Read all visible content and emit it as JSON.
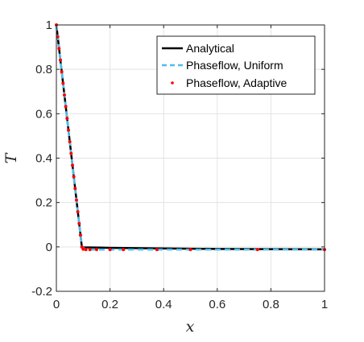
{
  "chart_data": {
    "type": "line",
    "xlabel": "x",
    "ylabel": "T",
    "xlim": [
      0,
      1
    ],
    "ylim": [
      -0.2,
      1
    ],
    "xticks": [
      0,
      0.2,
      0.4,
      0.6,
      0.8,
      1
    ],
    "xtick_labels": [
      "0",
      "0.2",
      "0.4",
      "0.6",
      "0.8",
      "1"
    ],
    "yticks": [
      -0.2,
      0,
      0.2,
      0.4,
      0.6,
      0.8,
      1
    ],
    "ytick_labels": [
      "-0.2",
      "0",
      "0.2",
      "0.4",
      "0.6",
      "0.8",
      "1"
    ],
    "grid": true,
    "legend_position": "top-right",
    "series": [
      {
        "name": "Analytical",
        "style": "solid",
        "color": "#000000",
        "x": [
          0,
          0.095,
          0.1,
          0.2,
          0.4,
          0.6,
          0.8,
          1.0
        ],
        "y": [
          1.0,
          0.0,
          -0.002,
          -0.004,
          -0.007,
          -0.009,
          -0.01,
          -0.011
        ]
      },
      {
        "name": "Phaseflow, Uniform",
        "style": "dashed",
        "color": "#4dbeee",
        "x": [
          0,
          0.095,
          0.11,
          0.2,
          0.4,
          0.6,
          0.8,
          1.0
        ],
        "y": [
          1.0,
          0.0,
          -0.012,
          -0.012,
          -0.012,
          -0.012,
          -0.012,
          -0.012
        ]
      },
      {
        "name": "Phaseflow, Adaptive",
        "style": "markers",
        "color": "#ff0000",
        "x": [
          0.0,
          0.005,
          0.01,
          0.015,
          0.02,
          0.025,
          0.03,
          0.035,
          0.04,
          0.045,
          0.05,
          0.055,
          0.06,
          0.065,
          0.07,
          0.075,
          0.08,
          0.085,
          0.09,
          0.095,
          0.1,
          0.11,
          0.125,
          0.15,
          0.2,
          0.25,
          0.375,
          0.5,
          0.75,
          1.0
        ],
        "y": [
          1.0,
          0.947,
          0.894,
          0.842,
          0.789,
          0.737,
          0.684,
          0.632,
          0.579,
          0.526,
          0.474,
          0.421,
          0.368,
          0.316,
          0.263,
          0.211,
          0.158,
          0.105,
          0.053,
          0.0,
          -0.01,
          -0.012,
          -0.012,
          -0.012,
          -0.012,
          -0.012,
          -0.012,
          -0.012,
          -0.012,
          -0.012
        ]
      }
    ]
  }
}
